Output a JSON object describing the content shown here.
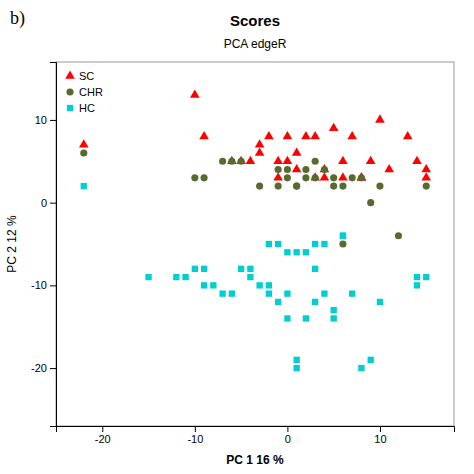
{
  "chart_data": {
    "type": "scatter",
    "title": "Scores",
    "subtitle": "PCA edgeR",
    "x_label": "PC 1 16 %",
    "y_label": "PC 2 12 %",
    "annotations": [
      "b)"
    ],
    "xlim": [
      -25,
      18
    ],
    "ylim": [
      -27,
      17
    ],
    "xticks": [
      -20,
      -10,
      0,
      10
    ],
    "yticks": [
      -20,
      -10,
      0,
      10
    ],
    "grid": false,
    "legend": "upper left",
    "series": [
      {
        "name": "SC",
        "color": "#FF0000",
        "marker": "triangle",
        "x": [
          -22,
          -10,
          -9,
          -6,
          -5,
          -4,
          -3,
          -2,
          -1,
          0,
          0,
          1,
          1,
          2,
          3,
          4,
          5,
          6,
          7,
          8,
          9,
          10,
          11,
          13,
          14,
          15,
          15,
          4,
          -1,
          3,
          6,
          -3,
          8
        ],
        "values": [
          7,
          13,
          8,
          5,
          5,
          5,
          6,
          8,
          5,
          8,
          5,
          4,
          6,
          8,
          8,
          4,
          9,
          3,
          8,
          3,
          5,
          10,
          4,
          8,
          5,
          4,
          3,
          3,
          3,
          3,
          5,
          7,
          3
        ]
      },
      {
        "name": "CHR",
        "color": "#556B2F",
        "marker": "circle",
        "x": [
          -22,
          -10,
          -9,
          -7,
          -6,
          -5,
          -3,
          -1,
          0,
          0,
          1,
          2,
          2,
          3,
          4,
          5,
          5,
          6,
          7,
          8,
          9,
          10,
          12,
          15,
          -1,
          1,
          6,
          3
        ],
        "values": [
          6,
          3,
          3,
          5,
          5,
          5,
          2,
          2,
          3,
          4,
          2,
          3,
          4,
          5,
          4,
          2,
          3,
          2,
          3,
          3,
          0,
          2,
          -4,
          2,
          4,
          2,
          -5,
          3
        ]
      },
      {
        "name": "HC",
        "color": "#00CED1",
        "marker": "square",
        "x": [
          -22,
          -15,
          -12,
          -11,
          -10,
          -9,
          -9,
          -8,
          -7,
          -6,
          -5,
          -4,
          -4,
          -3,
          -2,
          -2,
          -1,
          0,
          0,
          1,
          1,
          2,
          3,
          3,
          4,
          5,
          5,
          6,
          7,
          8,
          9,
          10,
          14,
          14,
          15,
          0,
          2,
          4,
          -2,
          -1,
          1,
          3,
          6
        ],
        "values": [
          2,
          -9,
          -9,
          -9,
          -8,
          -8,
          -10,
          -10,
          -11,
          -11,
          -8,
          -9,
          -8,
          -10,
          -11,
          -10,
          -12,
          -11,
          -14,
          -19,
          -20,
          -14,
          -12,
          -8,
          -11,
          -14,
          -13,
          -4,
          -11,
          -20,
          -19,
          -12,
          -9,
          -10,
          -9,
          -6,
          -6,
          -5,
          -5,
          -5,
          -6,
          -5,
          -4
        ]
      }
    ]
  }
}
